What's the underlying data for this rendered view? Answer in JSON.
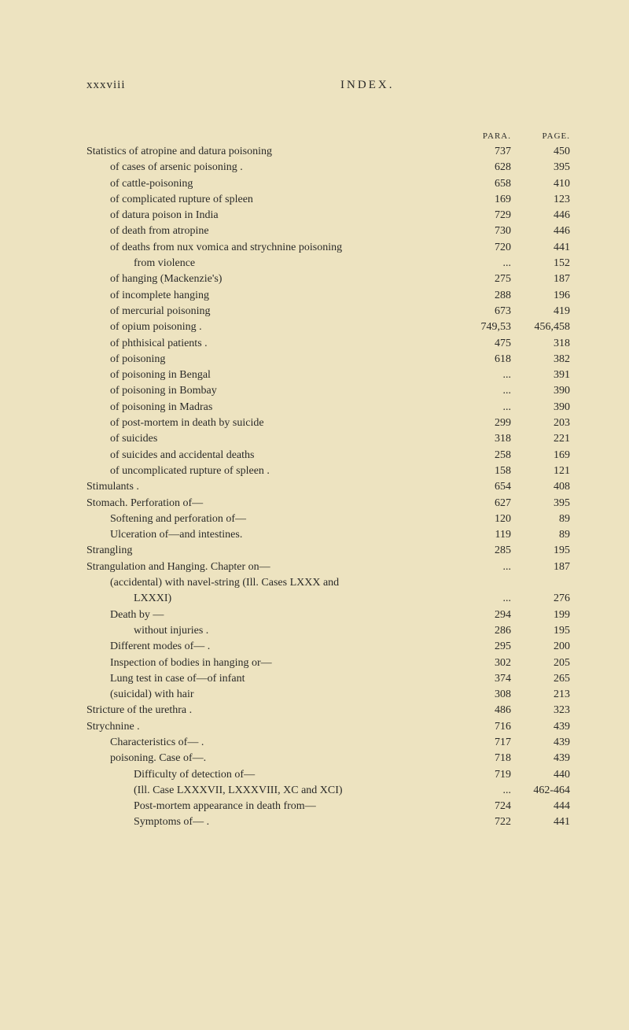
{
  "header": {
    "page_number": "xxxviii",
    "title": "INDEX."
  },
  "column_headers": {
    "para": "PARA.",
    "page": "PAGE."
  },
  "entries": [
    {
      "label": "Statistics of atropine and datura poisoning",
      "indent": 0,
      "para": "737",
      "page": "450"
    },
    {
      "label": "of cases of arsenic poisoning .",
      "indent": 1,
      "para": "628",
      "page": "395"
    },
    {
      "label": "of cattle-poisoning",
      "indent": 1,
      "para": "658",
      "page": "410"
    },
    {
      "label": "of complicated rupture of spleen",
      "indent": 1,
      "para": "169",
      "page": "123"
    },
    {
      "label": "of datura poison in India",
      "indent": 1,
      "para": "729",
      "page": "446"
    },
    {
      "label": "of death from atropine",
      "indent": 1,
      "para": "730",
      "page": "446"
    },
    {
      "label": "of deaths from nux vomica and strychnine poisoning",
      "indent": 1,
      "para": "720",
      "page": "441"
    },
    {
      "label": "from violence",
      "indent": 2,
      "para": "...",
      "page": "152"
    },
    {
      "label": "of hanging (Mackenzie's)",
      "indent": 1,
      "para": "275",
      "page": "187"
    },
    {
      "label": "of incomplete hanging",
      "indent": 1,
      "para": "288",
      "page": "196"
    },
    {
      "label": "of mercurial poisoning",
      "indent": 1,
      "para": "673",
      "page": "419"
    },
    {
      "label": "of opium poisoning .",
      "indent": 1,
      "para": "749,53",
      "page": "456,458"
    },
    {
      "label": "of phthisical patients .",
      "indent": 1,
      "para": "475",
      "page": "318"
    },
    {
      "label": "of poisoning",
      "indent": 1,
      "para": "618",
      "page": "382"
    },
    {
      "label": "of poisoning in Bengal",
      "indent": 1,
      "para": "...",
      "page": "391"
    },
    {
      "label": "of poisoning in Bombay",
      "indent": 1,
      "para": "...",
      "page": "390"
    },
    {
      "label": "of poisoning in Madras",
      "indent": 1,
      "para": "...",
      "page": "390"
    },
    {
      "label": "of post-mortem in death by suicide",
      "indent": 1,
      "para": "299",
      "page": "203"
    },
    {
      "label": "of suicides",
      "indent": 1,
      "para": "318",
      "page": "221"
    },
    {
      "label": "of suicides and accidental deaths",
      "indent": 1,
      "para": "258",
      "page": "169"
    },
    {
      "label": "of uncomplicated rupture of spleen .",
      "indent": 1,
      "para": "158",
      "page": "121"
    },
    {
      "label": "Stimulants .",
      "indent": 0,
      "para": "654",
      "page": "408"
    },
    {
      "label": "Stomach. Perforation of—",
      "indent": 0,
      "para": "627",
      "page": "395"
    },
    {
      "label": "Softening and perforation of—",
      "indent": 1,
      "para": "120",
      "page": "89"
    },
    {
      "label": "Ulceration of—and intestines.",
      "indent": 1,
      "para": "119",
      "page": "89"
    },
    {
      "label": "Strangling",
      "indent": 0,
      "para": "285",
      "page": "195"
    },
    {
      "label": "Strangulation and Hanging. Chapter on—",
      "indent": 0,
      "para": "...",
      "page": "187"
    },
    {
      "label": "(accidental) with navel-string (Ill. Cases LXXX and",
      "indent": 1,
      "para": "",
      "page": ""
    },
    {
      "label": "LXXXI)",
      "indent": 2,
      "para": "...",
      "page": "276"
    },
    {
      "label": "Death by —",
      "indent": 1,
      "para": "294",
      "page": "199"
    },
    {
      "label": "without injuries .",
      "indent": 2,
      "para": "286",
      "page": "195"
    },
    {
      "label": "Different modes of— .",
      "indent": 1,
      "para": "295",
      "page": "200"
    },
    {
      "label": "Inspection of bodies in hanging or—",
      "indent": 1,
      "para": "302",
      "page": "205"
    },
    {
      "label": "Lung test in case of—of infant",
      "indent": 1,
      "para": "374",
      "page": "265"
    },
    {
      "label": "(suicidal) with hair",
      "indent": 1,
      "para": "308",
      "page": "213"
    },
    {
      "label": "Stricture of the urethra .",
      "indent": 0,
      "para": "486",
      "page": "323"
    },
    {
      "label": "Strychnine .",
      "indent": 0,
      "para": "716",
      "page": "439"
    },
    {
      "label": "Characteristics of— .",
      "indent": 1,
      "para": "717",
      "page": "439"
    },
    {
      "label": "poisoning. Case of—.",
      "indent": 1,
      "para": "718",
      "page": "439"
    },
    {
      "label": "Difficulty of detection of—",
      "indent": 2,
      "para": "719",
      "page": "440"
    },
    {
      "label": "(Ill. Case LXXXVII, LXXXVIII, XC and XCI)",
      "indent": 2,
      "para": "...",
      "page": "462-464"
    },
    {
      "label": "Post-mortem appearance in death from—",
      "indent": 2,
      "para": "724",
      "page": "444"
    },
    {
      "label": "Symptoms of— .",
      "indent": 2,
      "para": "722",
      "page": "441"
    }
  ]
}
